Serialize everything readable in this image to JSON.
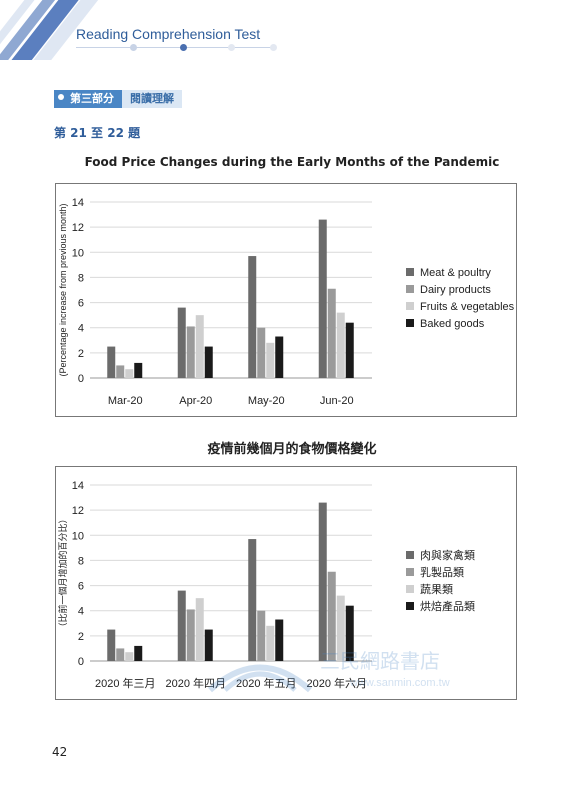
{
  "header": {
    "title": "Reading Comprehension Test",
    "stripe_colors": [
      "#dfe7f3",
      "#8fa8d2",
      "#5b7fbf",
      "#dfe7f3"
    ]
  },
  "section": {
    "part": "第三部分",
    "name": "閱讀理解"
  },
  "question_range": "第 21 至 22 題",
  "page_number": "42",
  "watermark": {
    "text": "三民網路書店",
    "url": "www.sanmin.com.tw"
  },
  "chart_data": [
    {
      "type": "bar",
      "title": "Food Price Changes during the Early Months of the Pandemic",
      "ylabel": "(Percentage increase from previous month)",
      "xlabel": "",
      "categories": [
        "Mar-20",
        "Apr-20",
        "May-20",
        "Jun-20"
      ],
      "ylim": [
        0,
        14
      ],
      "yticks": [
        0,
        2,
        4,
        6,
        8,
        10,
        12,
        14
      ],
      "grid": true,
      "legend_position": "right",
      "series": [
        {
          "name": "Meat & poultry",
          "color": "#6b6b6b",
          "values": [
            2.5,
            5.6,
            9.7,
            12.6
          ]
        },
        {
          "name": "Dairy products",
          "color": "#9a9a9a",
          "values": [
            1.0,
            4.1,
            4.0,
            7.1
          ]
        },
        {
          "name": "Fruits & vegetables",
          "color": "#cfcfcf",
          "values": [
            0.7,
            5.0,
            2.8,
            5.2
          ]
        },
        {
          "name": "Baked goods",
          "color": "#1a1a1a",
          "values": [
            1.2,
            2.5,
            3.3,
            4.4
          ]
        }
      ]
    },
    {
      "type": "bar",
      "title": "疫情前幾個月的食物價格變化",
      "ylabel": "（比前一個月增加的百分比）",
      "xlabel": "",
      "categories": [
        "2020 年三月",
        "2020 年四月",
        "2020 年五月",
        "2020 年六月"
      ],
      "ylim": [
        0,
        14
      ],
      "yticks": [
        0,
        2,
        4,
        6,
        8,
        10,
        12,
        14
      ],
      "grid": true,
      "legend_position": "right",
      "series": [
        {
          "name": "肉與家禽類",
          "color": "#6b6b6b",
          "values": [
            2.5,
            5.6,
            9.7,
            12.6
          ]
        },
        {
          "name": "乳製品類",
          "color": "#9a9a9a",
          "values": [
            1.0,
            4.1,
            4.0,
            7.1
          ]
        },
        {
          "name": "蔬果類",
          "color": "#cfcfcf",
          "values": [
            0.7,
            5.0,
            2.8,
            5.2
          ]
        },
        {
          "name": "烘焙產品類",
          "color": "#1a1a1a",
          "values": [
            1.2,
            2.5,
            3.3,
            4.4
          ]
        }
      ]
    }
  ]
}
